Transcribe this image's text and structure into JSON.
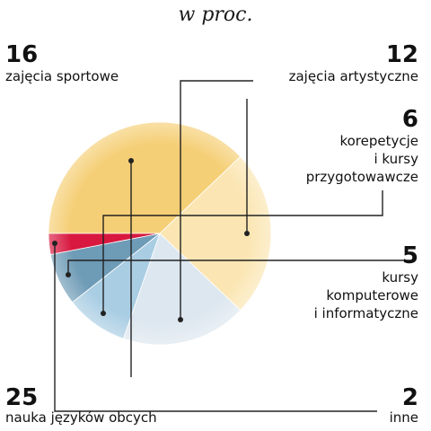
{
  "subtitle": "w proc.",
  "chart_data": {
    "type": "pie",
    "start_label": "nauka języków obcych",
    "slices": [
      {
        "value": 25,
        "value_label": "25",
        "label": [
          "nauka języków obcych"
        ],
        "color": "#f5cf76"
      },
      {
        "value": 16,
        "value_label": "16",
        "label": [
          "zajęcia sportowe"
        ],
        "color": "#fbe6b3"
      },
      {
        "value": 12,
        "value_label": "12",
        "label": [
          "zajęcia artystyczne"
        ],
        "color": "#dde7ef"
      },
      {
        "value": 6,
        "value_label": "6",
        "label": [
          "korepetycje",
          "i kursy",
          "przygotowawcze"
        ],
        "color": "#a9cde3"
      },
      {
        "value": 5,
        "value_label": "5",
        "label": [
          "kursy",
          "komputerowe",
          "i informatyczne"
        ],
        "color": "#6e9bb6"
      },
      {
        "value": 2,
        "value_label": "2",
        "label": [
          "inne"
        ],
        "color": "#d8183f"
      }
    ]
  }
}
